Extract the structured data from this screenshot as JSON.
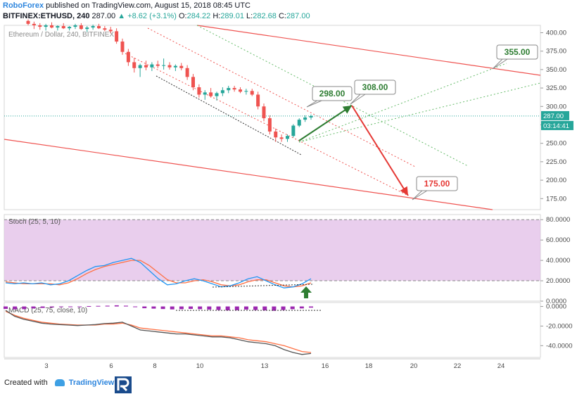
{
  "header": {
    "publisher": "RoboForex",
    "published_text": "published on TradingView.com, August 15, 2018 08:45 UTC",
    "symbol": "BITFINEX:ETHUSD, 240",
    "last": "287.00",
    "change": "▲ +8.62 (+3.1%)",
    "open_label": "O:",
    "open": "284.22",
    "high_label": "H:",
    "high": "289.01",
    "low_label": "L:",
    "low": "282.68",
    "close_label": "C:",
    "close": "287.00"
  },
  "footer": {
    "created_with": "Created with",
    "brand": "TradingView"
  },
  "colors": {
    "up": "#26a69a",
    "down": "#ef5350",
    "channel": "#ef5350",
    "arrow_up": "#2e7d32",
    "arrow_down": "#e53935",
    "stoch_zone": "#e1bee7",
    "blue": "#2196f3",
    "orange": "#ff7043",
    "macd_hist": "#9c27b0"
  },
  "chart_data": [
    {
      "type": "candlestick",
      "title": "Ethereum / Dollar, 240, BITFINEX",
      "ylim": [
        160,
        410
      ],
      "y_ticks": [
        400,
        375,
        350,
        325,
        300,
        275,
        250,
        225,
        200,
        175
      ],
      "x_ticks": [
        "3",
        "6",
        "8",
        "10",
        "13",
        "16",
        "18",
        "20",
        "22",
        "24"
      ],
      "last_price_label": "287.00",
      "countdown_label": "03:14:41",
      "candles": [
        {
          "o": 416,
          "h": 418,
          "l": 410,
          "c": 412
        },
        {
          "o": 412,
          "h": 415,
          "l": 405,
          "c": 410
        },
        {
          "o": 410,
          "h": 413,
          "l": 404,
          "c": 408
        },
        {
          "o": 408,
          "h": 412,
          "l": 403,
          "c": 410
        },
        {
          "o": 410,
          "h": 414,
          "l": 406,
          "c": 407
        },
        {
          "o": 407,
          "h": 410,
          "l": 403,
          "c": 409
        },
        {
          "o": 409,
          "h": 413,
          "l": 405,
          "c": 406
        },
        {
          "o": 406,
          "h": 409,
          "l": 403,
          "c": 408
        },
        {
          "o": 408,
          "h": 412,
          "l": 405,
          "c": 410
        },
        {
          "o": 410,
          "h": 413,
          "l": 404,
          "c": 405
        },
        {
          "o": 405,
          "h": 409,
          "l": 401,
          "c": 407
        },
        {
          "o": 407,
          "h": 411,
          "l": 404,
          "c": 409
        },
        {
          "o": 409,
          "h": 412,
          "l": 405,
          "c": 406
        },
        {
          "o": 406,
          "h": 409,
          "l": 402,
          "c": 404
        },
        {
          "o": 404,
          "h": 408,
          "l": 399,
          "c": 402
        },
        {
          "o": 402,
          "h": 406,
          "l": 385,
          "c": 388
        },
        {
          "o": 388,
          "h": 392,
          "l": 370,
          "c": 374
        },
        {
          "o": 374,
          "h": 378,
          "l": 355,
          "c": 360
        },
        {
          "o": 360,
          "h": 366,
          "l": 346,
          "c": 352
        },
        {
          "o": 352,
          "h": 358,
          "l": 340,
          "c": 356
        },
        {
          "o": 356,
          "h": 362,
          "l": 349,
          "c": 353
        },
        {
          "o": 353,
          "h": 360,
          "l": 348,
          "c": 357
        },
        {
          "o": 357,
          "h": 362,
          "l": 352,
          "c": 355
        },
        {
          "o": 355,
          "h": 365,
          "l": 350,
          "c": 356
        },
        {
          "o": 356,
          "h": 360,
          "l": 350,
          "c": 353
        },
        {
          "o": 353,
          "h": 357,
          "l": 348,
          "c": 355
        },
        {
          "o": 355,
          "h": 359,
          "l": 349,
          "c": 352
        },
        {
          "o": 352,
          "h": 356,
          "l": 336,
          "c": 340
        },
        {
          "o": 340,
          "h": 344,
          "l": 322,
          "c": 326
        },
        {
          "o": 326,
          "h": 330,
          "l": 312,
          "c": 316
        },
        {
          "o": 316,
          "h": 322,
          "l": 309,
          "c": 319
        },
        {
          "o": 319,
          "h": 325,
          "l": 312,
          "c": 314
        },
        {
          "o": 314,
          "h": 320,
          "l": 308,
          "c": 318
        },
        {
          "o": 318,
          "h": 326,
          "l": 314,
          "c": 322
        },
        {
          "o": 322,
          "h": 328,
          "l": 318,
          "c": 325
        },
        {
          "o": 325,
          "h": 328,
          "l": 320,
          "c": 323
        },
        {
          "o": 323,
          "h": 326,
          "l": 318,
          "c": 320
        },
        {
          "o": 320,
          "h": 324,
          "l": 316,
          "c": 321
        },
        {
          "o": 321,
          "h": 324,
          "l": 314,
          "c": 316
        },
        {
          "o": 316,
          "h": 320,
          "l": 296,
          "c": 300
        },
        {
          "o": 300,
          "h": 304,
          "l": 280,
          "c": 284
        },
        {
          "o": 284,
          "h": 288,
          "l": 262,
          "c": 266
        },
        {
          "o": 266,
          "h": 270,
          "l": 252,
          "c": 258
        },
        {
          "o": 258,
          "h": 262,
          "l": 252,
          "c": 256
        },
        {
          "o": 256,
          "h": 262,
          "l": 252,
          "c": 260
        },
        {
          "o": 260,
          "h": 276,
          "l": 258,
          "c": 274
        },
        {
          "o": 274,
          "h": 284,
          "l": 272,
          "c": 282
        },
        {
          "o": 282,
          "h": 288,
          "l": 279,
          "c": 285
        },
        {
          "o": 285,
          "h": 289,
          "l": 282,
          "c": 287
        }
      ],
      "annotations": [
        {
          "label": "298.00",
          "color": "#2e7d32"
        },
        {
          "label": "308.00",
          "color": "#2e7d32"
        },
        {
          "label": "355.00",
          "color": "#2e7d32"
        },
        {
          "label": "175.00",
          "color": "#e53935"
        }
      ]
    },
    {
      "type": "line",
      "title": "Stoch (25, 5, 10)",
      "ylim": [
        0,
        85
      ],
      "y_ticks": [
        "80.0000",
        "60.0000",
        "40.0000",
        "20.0000",
        "0.0000"
      ],
      "overbought": 80,
      "oversold": 20,
      "series": [
        {
          "color": "#2196f3",
          "values": [
            18,
            17,
            18,
            17,
            18,
            16,
            17,
            20,
            25,
            30,
            34,
            35,
            38,
            40,
            42,
            38,
            30,
            22,
            16,
            17,
            20,
            22,
            20,
            17,
            14,
            15,
            18,
            22,
            24,
            20,
            16,
            13,
            14,
            17,
            22
          ]
        },
        {
          "color": "#ff7043",
          "values": [
            19,
            18,
            17,
            17,
            17,
            17,
            16,
            18,
            22,
            27,
            31,
            34,
            36,
            38,
            40,
            40,
            35,
            28,
            21,
            18,
            18,
            20,
            21,
            19,
            16,
            15,
            16,
            19,
            21,
            21,
            18,
            15,
            14,
            15,
            18
          ]
        }
      ]
    },
    {
      "type": "line",
      "title": "MACD (25, 75, close, 10)",
      "ylim": [
        -52,
        4
      ],
      "y_ticks": [
        "0.0000",
        "-20.0000",
        "-40.0000"
      ],
      "series": [
        {
          "color": "#ff7043",
          "values": [
            -5,
            -9,
            -12,
            -14,
            -16,
            -17,
            -18,
            -18.5,
            -19,
            -19,
            -19,
            -18,
            -18,
            -17,
            -19,
            -22,
            -23,
            -24,
            -25,
            -26,
            -27,
            -28,
            -29,
            -30,
            -30,
            -31,
            -32,
            -34,
            -35,
            -36,
            -38,
            -40,
            -43,
            -46,
            -47
          ]
        },
        {
          "color": "#555555",
          "values": [
            -4,
            -10,
            -13,
            -15,
            -17,
            -18,
            -18.5,
            -19,
            -19.5,
            -19,
            -18.5,
            -17.5,
            -17,
            -16,
            -20,
            -24,
            -25,
            -26,
            -27,
            -28,
            -28,
            -29,
            -30,
            -31,
            -31,
            -32,
            -34,
            -36,
            -37,
            -38,
            -40,
            -44,
            -47,
            -49,
            -48
          ]
        }
      ]
    }
  ]
}
